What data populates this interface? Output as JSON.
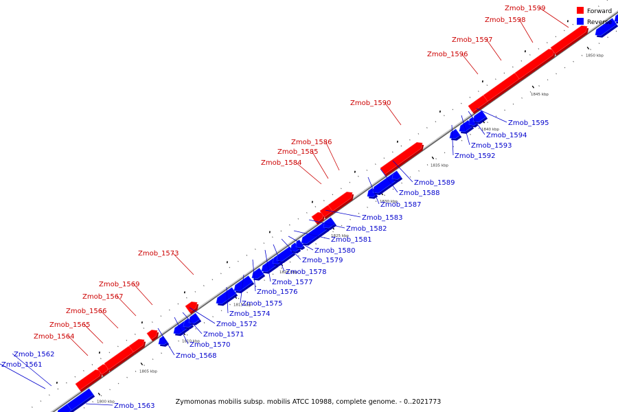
{
  "caption": "Zymomonas mobilis subsp. mobilis ATCC 10988, complete genome. - 0..2021773",
  "legend": [
    {
      "label": "Forward",
      "color": "#ff0000"
    },
    {
      "label": "Reverse",
      "color": "#0000ff"
    }
  ],
  "colors": {
    "forward_fill": "#ff0000",
    "forward_dark": "#b30000",
    "forward_label": "#cc0000",
    "reverse_fill": "#0000ff",
    "reverse_dark": "#0000aa",
    "reverse_label": "#0000cc",
    "backbone": "#888888"
  },
  "kbp_ticks": [
    "1800 kbp",
    "1805 kbp",
    "1810 kbp",
    "1815 kbp",
    "1820 kbp",
    "1825 kbp",
    "1830 kbp",
    "1835 kbp",
    "1840 kbp",
    "1845 kbp",
    "1850 kbp"
  ],
  "genes": [
    {
      "id": "Zmob_1561",
      "strand": "reverse"
    },
    {
      "id": "Zmob_1562",
      "strand": "reverse"
    },
    {
      "id": "Zmob_1563",
      "strand": "reverse"
    },
    {
      "id": "Zmob_1564",
      "strand": "forward"
    },
    {
      "id": "Zmob_1565",
      "strand": "forward"
    },
    {
      "id": "Zmob_1566",
      "strand": "forward"
    },
    {
      "id": "Zmob_1567",
      "strand": "forward"
    },
    {
      "id": "Zmob_1568",
      "strand": "reverse"
    },
    {
      "id": "Zmob_1569",
      "strand": "forward"
    },
    {
      "id": "Zmob_1570",
      "strand": "reverse"
    },
    {
      "id": "Zmob_1571",
      "strand": "reverse"
    },
    {
      "id": "Zmob_1572",
      "strand": "reverse"
    },
    {
      "id": "Zmob_1573",
      "strand": "forward"
    },
    {
      "id": "Zmob_1574",
      "strand": "reverse"
    },
    {
      "id": "Zmob_1575",
      "strand": "reverse"
    },
    {
      "id": "Zmob_1576",
      "strand": "reverse"
    },
    {
      "id": "Zmob_1577",
      "strand": "reverse"
    },
    {
      "id": "Zmob_1578",
      "strand": "reverse"
    },
    {
      "id": "Zmob_1579",
      "strand": "reverse"
    },
    {
      "id": "Zmob_1580",
      "strand": "reverse"
    },
    {
      "id": "Zmob_1581",
      "strand": "reverse"
    },
    {
      "id": "Zmob_1582",
      "strand": "reverse"
    },
    {
      "id": "Zmob_1583",
      "strand": "reverse"
    },
    {
      "id": "Zmob_1584",
      "strand": "forward"
    },
    {
      "id": "Zmob_1585",
      "strand": "forward"
    },
    {
      "id": "Zmob_1586",
      "strand": "forward"
    },
    {
      "id": "Zmob_1587",
      "strand": "reverse"
    },
    {
      "id": "Zmob_1588",
      "strand": "reverse"
    },
    {
      "id": "Zmob_1589",
      "strand": "reverse"
    },
    {
      "id": "Zmob_1590",
      "strand": "forward"
    },
    {
      "id": "Zmob_1592",
      "strand": "reverse"
    },
    {
      "id": "Zmob_1593",
      "strand": "reverse"
    },
    {
      "id": "Zmob_1594",
      "strand": "reverse"
    },
    {
      "id": "Zmob_1595",
      "strand": "reverse"
    },
    {
      "id": "Zmob_1596",
      "strand": "forward"
    },
    {
      "id": "Zmob_1597",
      "strand": "forward"
    },
    {
      "id": "Zmob_1598",
      "strand": "forward"
    },
    {
      "id": "Zmob_1599",
      "strand": "forward"
    }
  ]
}
